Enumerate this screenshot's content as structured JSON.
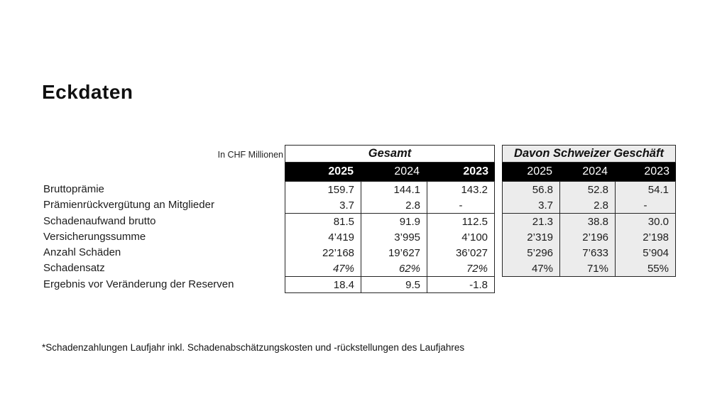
{
  "title": "Eckdaten",
  "unit_label": "In CHF Millionen",
  "footnote": "*Schadenzahlungen Laufjahr inkl. Schadenabschätzungskosten und -rückstellungen des Laufjahres",
  "colors": {
    "header_band": "#000000",
    "swiss_table_bg": "#ececec",
    "border": "#262626"
  },
  "row_labels": [
    "Bruttoprämie",
    "Prämienrückvergütung an Mitglieder",
    "Schadenaufwand brutto",
    "Versicherungssumme",
    "Anzahl Schäden",
    "Schadensatz",
    "Ergebnis vor Veränderung der Reserven"
  ],
  "tables": [
    {
      "title": "Gesamt",
      "years": [
        "2025",
        "2024",
        "2023"
      ],
      "groups": [
        {
          "rows": [
            [
              "159.7",
              "144.1",
              "143.2"
            ],
            [
              "3.7",
              "2.8",
              "-"
            ]
          ]
        },
        {
          "rows": [
            [
              "81.5",
              "91.9",
              "112.5"
            ],
            [
              "4’419",
              "3’995",
              "4’100"
            ],
            [
              "22’168",
              "19’627",
              "36’027"
            ],
            [
              "47%",
              "62%",
              "72%"
            ]
          ]
        },
        {
          "rows": [
            [
              "18.4",
              "9.5",
              "-1.8"
            ]
          ]
        }
      ]
    },
    {
      "title": "Davon Schweizer Geschäft",
      "years": [
        "2025",
        "2024",
        "2023"
      ],
      "groups": [
        {
          "rows": [
            [
              "56.8",
              "52.8",
              "54.1"
            ],
            [
              "3.7",
              "2.8",
              "-"
            ]
          ]
        },
        {
          "rows": [
            [
              "21.3",
              "38.8",
              "30.0"
            ],
            [
              "2’319",
              "2’196",
              "2’198"
            ],
            [
              "5’296",
              "7’633",
              "5’904"
            ],
            [
              "47%",
              "71%",
              "55%"
            ]
          ]
        }
      ]
    }
  ]
}
